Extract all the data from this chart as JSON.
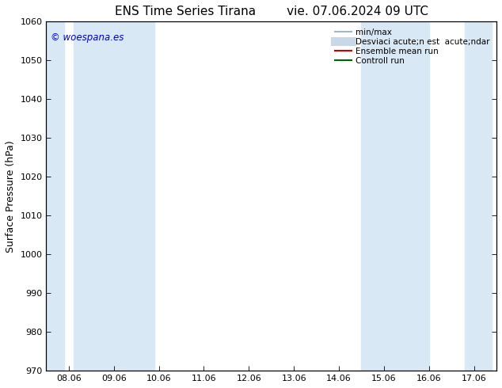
{
  "title": "ENS Time Series Tirana",
  "title2": "vie. 07.06.2024 09 UTC",
  "ylabel": "Surface Pressure (hPa)",
  "ylim": [
    970,
    1060
  ],
  "yticks": [
    970,
    980,
    990,
    1000,
    1010,
    1020,
    1030,
    1040,
    1050,
    1060
  ],
  "xtick_labels": [
    "08.06",
    "09.06",
    "10.06",
    "11.06",
    "12.06",
    "13.06",
    "14.06",
    "15.06",
    "16.06",
    "17.06"
  ],
  "background_color": "#ffffff",
  "plot_bg_color": "#ffffff",
  "band_color": "#d8e8f4",
  "bands": [
    {
      "xmin": 0.0,
      "xmax": 0.4
    },
    {
      "xmin": 0.6,
      "xmax": 2.4
    },
    {
      "xmin": 7.0,
      "xmax": 8.5
    },
    {
      "xmin": 9.3,
      "xmax": 9.9
    }
  ],
  "watermark": "© woespana.es",
  "watermark_color": "#0000cc",
  "legend_entries": [
    {
      "label": "min/max",
      "color": "#a0b8cc",
      "lw": 1.5
    },
    {
      "label": "Desviaci acute;n est  acute;ndar",
      "color": "#c8d8e8",
      "lw": 8
    },
    {
      "label": "Ensemble mean run",
      "color": "#cc0000",
      "lw": 1.5
    },
    {
      "label": "Controll run",
      "color": "#006600",
      "lw": 1.5
    }
  ],
  "title_fontsize": 11,
  "tick_fontsize": 8,
  "ylabel_fontsize": 9,
  "legend_fontsize": 7.5
}
